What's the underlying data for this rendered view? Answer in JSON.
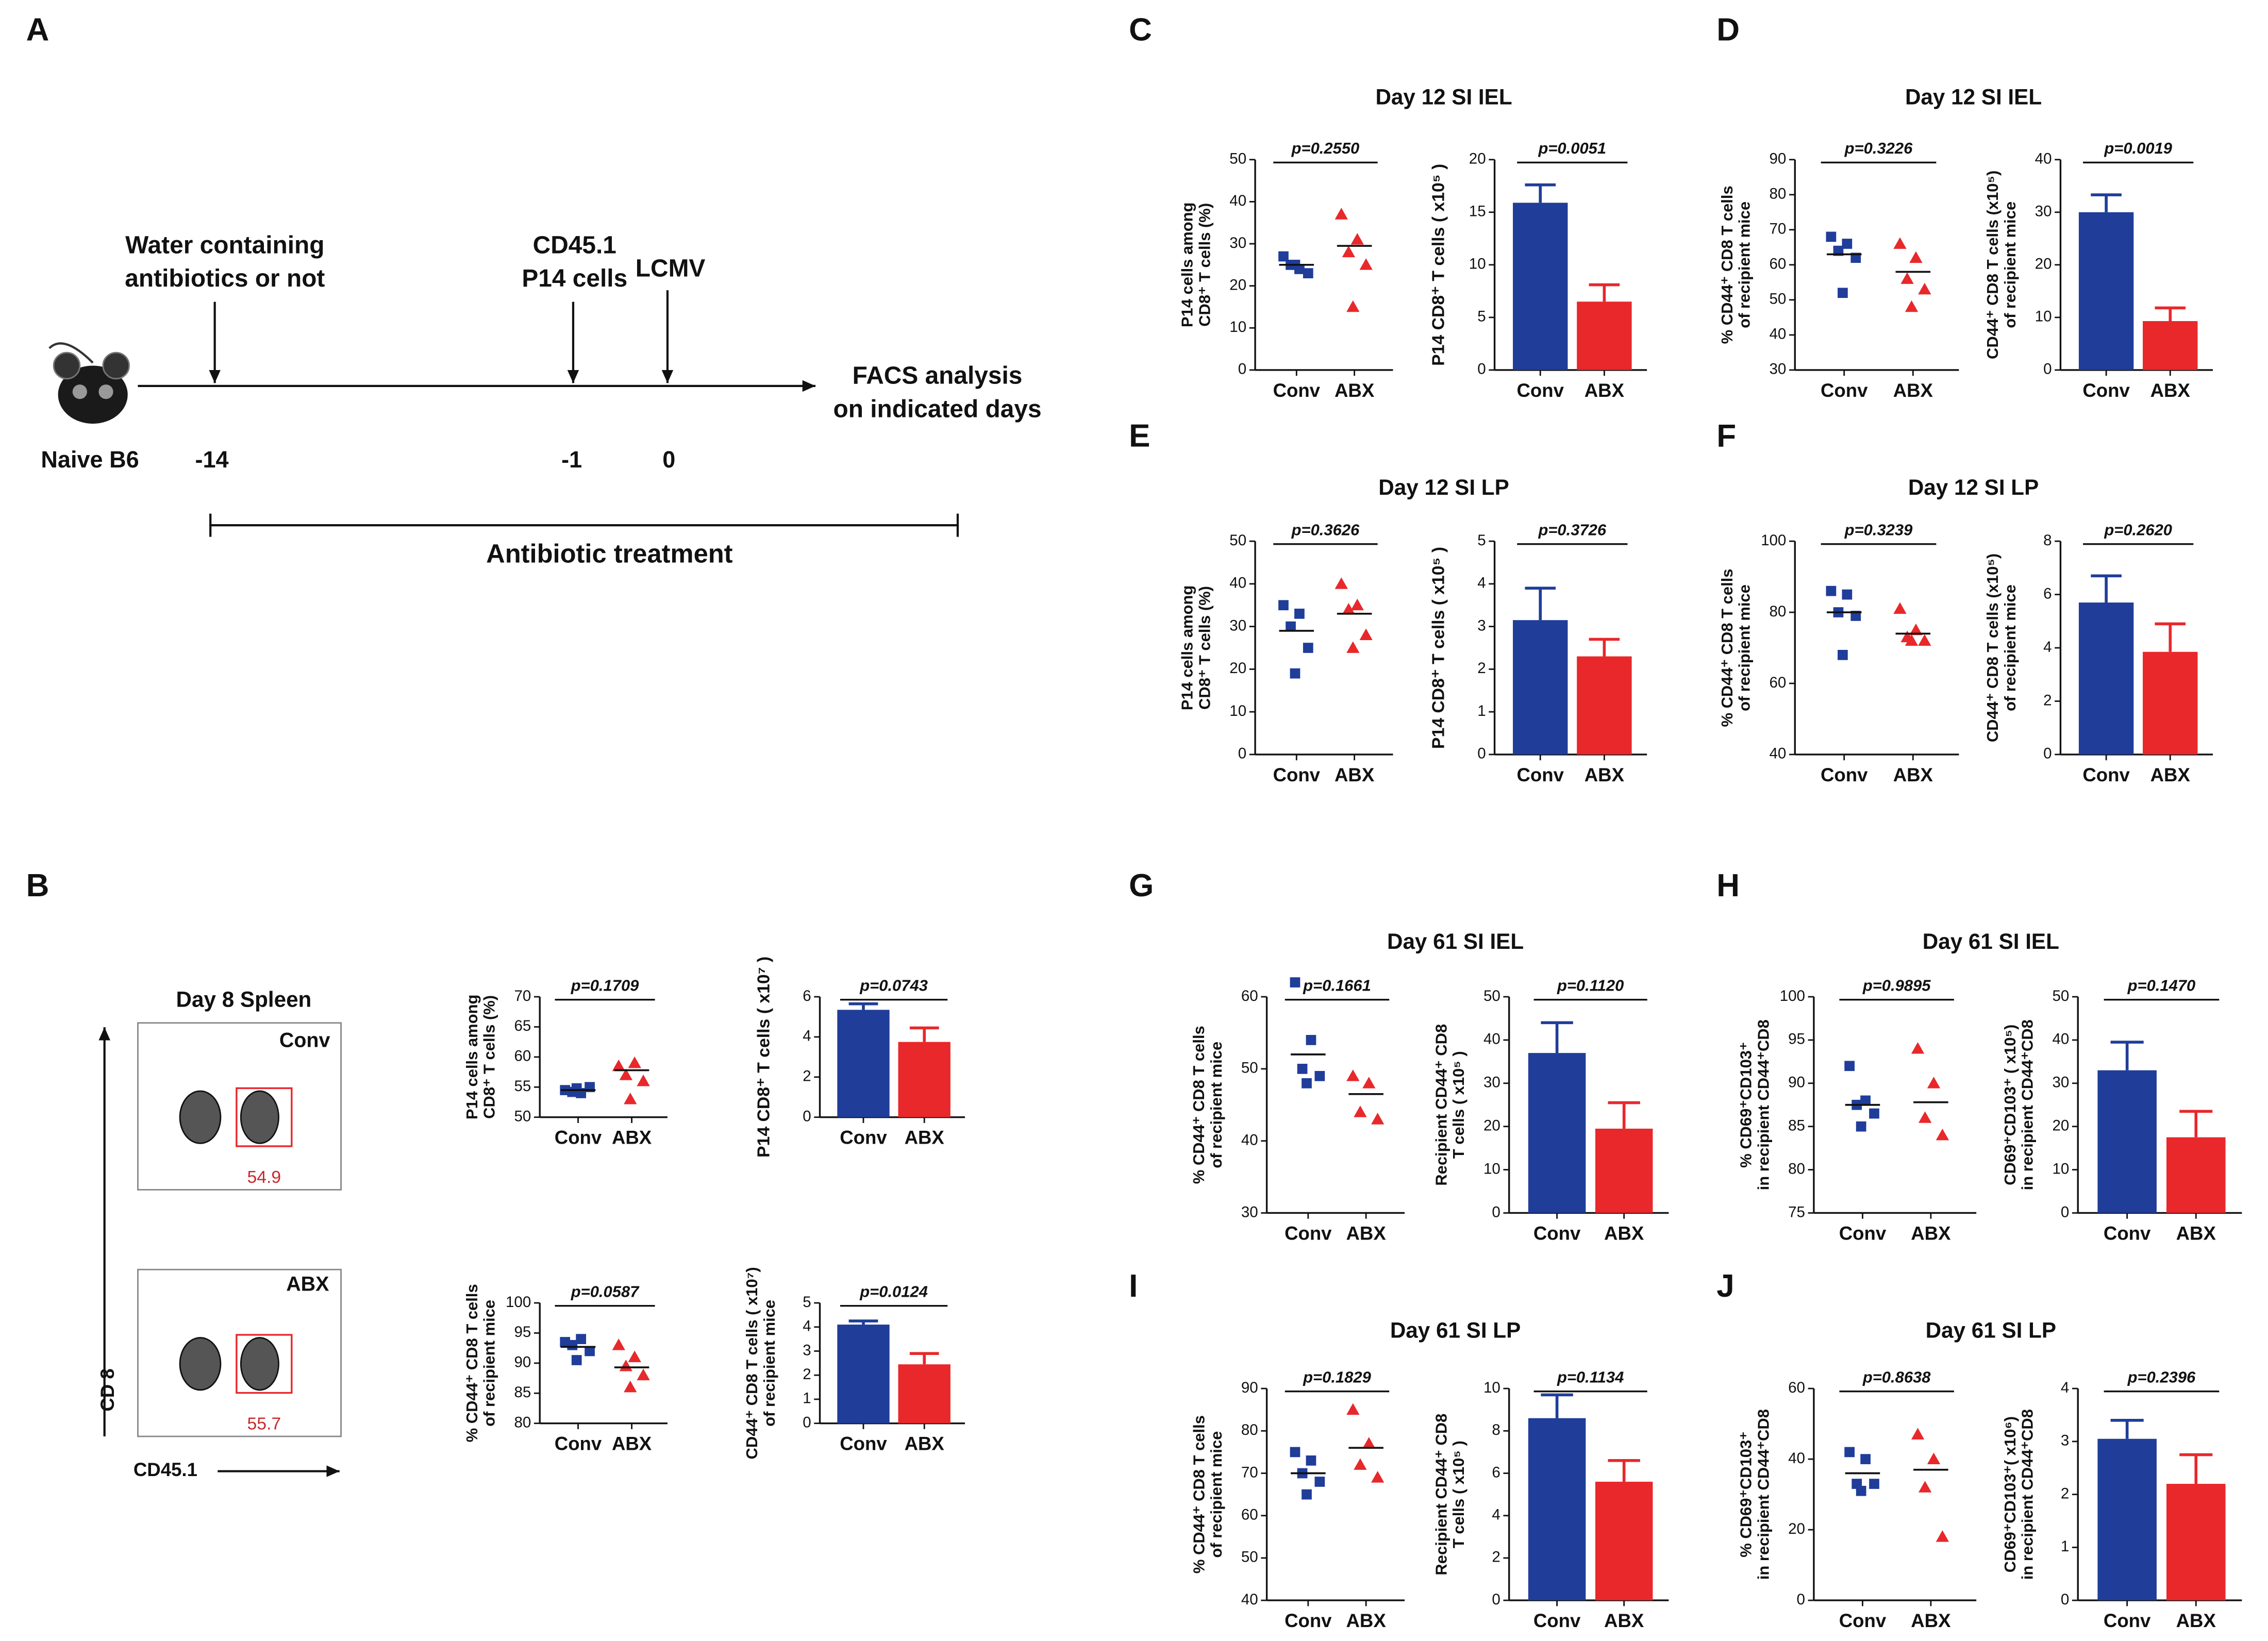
{
  "panel_labels": [
    "A",
    "B",
    "C",
    "D",
    "E",
    "F",
    "G",
    "H",
    "I",
    "J"
  ],
  "panel_titles": [
    "Day 12 SI IEL",
    "Day 12 SI IEL",
    "Day 12 SI LP",
    "Day 12 SI LP",
    "Day 61 SI IEL",
    "Day 61 SI IEL",
    "Day 61 SI LP",
    "Day 61 SI LP"
  ],
  "timeline": {
    "mouse_label": "Naive B6",
    "events": [
      {
        "label": [
          "Water containing",
          "antibiotics or not"
        ],
        "day": "-14"
      },
      {
        "label": [
          "CD45.1",
          "P14 cells"
        ],
        "day": "-1"
      },
      {
        "label": [
          "LCMV"
        ],
        "day": "0"
      }
    ],
    "end_label": [
      "FACS analysis",
      "on indicated days"
    ],
    "treatment_label": "Antibiotic treatment"
  },
  "flow": {
    "title": "Day 8 Spleen",
    "plots": [
      {
        "label": "Conv",
        "gate": "54.9"
      },
      {
        "label": "ABX",
        "gate": "55.7"
      }
    ],
    "ylabel": "CD 8",
    "xlabel": "CD45.1"
  },
  "chart_data": [
    {
      "type": "dot",
      "ylabel": [
        "P14 cells among",
        "CD8⁺ T cells (%)"
      ],
      "categories": [
        "Conv",
        "ABX"
      ],
      "colors": [
        "#1f3d99",
        "#e8282b"
      ],
      "values": [
        [
          54.5,
          54,
          54.2,
          55,
          54.8
        ],
        [
          58.5,
          59,
          57,
          56,
          53
        ]
      ],
      "means": [
        54.5,
        57.8
      ],
      "ylim": [
        50,
        70
      ],
      "yticks": [
        50,
        55,
        60,
        65,
        70
      ],
      "pvalue": "p=0.1709"
    },
    {
      "type": "bar",
      "ylabel": [
        "P14 CD8⁺ T cells ( x10⁷ )"
      ],
      "categories": [
        "Conv",
        "ABX"
      ],
      "colors": [
        "#1f3d99",
        "#e8282b"
      ],
      "values": [
        5.35,
        3.75
      ],
      "errors": [
        0.3,
        0.7
      ],
      "ylim": [
        0,
        6
      ],
      "yticks": [
        0,
        2,
        4,
        6
      ],
      "pvalue": "p=0.0743"
    },
    {
      "type": "dot",
      "ylabel": [
        "% CD44⁺ CD8 T cells",
        "of recipient mice"
      ],
      "categories": [
        "Conv",
        "ABX"
      ],
      "colors": [
        "#1f3d99",
        "#e8282b"
      ],
      "values": [
        [
          93.5,
          94,
          93,
          92,
          90.5
        ],
        [
          93,
          91,
          89.5,
          88,
          86
        ]
      ],
      "means": [
        92.7,
        89.3
      ],
      "ylim": [
        80,
        100
      ],
      "yticks": [
        80,
        85,
        90,
        95,
        100
      ],
      "pvalue": "p=0.0587"
    },
    {
      "type": "bar",
      "ylabel": [
        "CD44⁺ CD8 T cells ( x10⁷)",
        "of recipient mice"
      ],
      "categories": [
        "Conv",
        "ABX"
      ],
      "colors": [
        "#1f3d99",
        "#e8282b"
      ],
      "values": [
        4.1,
        2.45
      ],
      "errors": [
        0.15,
        0.45
      ],
      "ylim": [
        0,
        5
      ],
      "yticks": [
        0,
        1,
        2,
        3,
        4,
        5
      ],
      "pvalue": "p=0.0124"
    },
    {
      "type": "dot",
      "ylabel": [
        "P14 cells among",
        "CD8⁺ T cells (%)"
      ],
      "categories": [
        "Conv",
        "ABX"
      ],
      "colors": [
        "#1f3d99",
        "#e8282b"
      ],
      "values": [
        [
          27,
          24,
          25,
          23,
          25
        ],
        [
          37,
          31,
          28,
          25,
          15
        ]
      ],
      "means": [
        25,
        29.5
      ],
      "ylim": [
        0,
        50
      ],
      "yticks": [
        0,
        10,
        20,
        30,
        40,
        50
      ],
      "pvalue": "p=0.2550"
    },
    {
      "type": "bar",
      "ylabel": [
        "P14 CD8⁺ T cells ( x10⁵ )"
      ],
      "categories": [
        "Conv",
        "ABX"
      ],
      "colors": [
        "#1f3d99",
        "#e8282b"
      ],
      "values": [
        15.9,
        6.5
      ],
      "errors": [
        1.7,
        1.6
      ],
      "ylim": [
        0,
        20
      ],
      "yticks": [
        0,
        5,
        10,
        15,
        20
      ],
      "pvalue": "p=0.0051"
    },
    {
      "type": "dot",
      "ylabel": [
        "% CD44⁺ CD8 T cells",
        "of recipient mice"
      ],
      "categories": [
        "Conv",
        "ABX"
      ],
      "colors": [
        "#1f3d99",
        "#e8282b"
      ],
      "values": [
        [
          68,
          66,
          64,
          62,
          52
        ],
        [
          66,
          62,
          56,
          53,
          48
        ]
      ],
      "means": [
        63,
        58
      ],
      "ylim": [
        30,
        90
      ],
      "yticks": [
        30,
        40,
        50,
        60,
        70,
        80,
        90
      ],
      "pvalue": "p=0.3226"
    },
    {
      "type": "bar",
      "ylabel": [
        "CD44⁺ CD8 T cells (x10⁵)",
        "of recipient mice"
      ],
      "categories": [
        "Conv",
        "ABX"
      ],
      "colors": [
        "#1f3d99",
        "#e8282b"
      ],
      "values": [
        30,
        9.3
      ],
      "errors": [
        3.3,
        2.5
      ],
      "ylim": [
        0,
        40
      ],
      "yticks": [
        0,
        10,
        20,
        30,
        40
      ],
      "pvalue": "p=0.0019"
    },
    {
      "type": "dot",
      "ylabel": [
        "P14 cells among",
        "CD8⁺ T cells (%)"
      ],
      "categories": [
        "Conv",
        "ABX"
      ],
      "colors": [
        "#1f3d99",
        "#e8282b"
      ],
      "values": [
        [
          35,
          33,
          30,
          25,
          19
        ],
        [
          40,
          35,
          34,
          28,
          25
        ]
      ],
      "means": [
        29,
        33
      ],
      "ylim": [
        0,
        50
      ],
      "yticks": [
        0,
        10,
        20,
        30,
        40,
        50
      ],
      "pvalue": "p=0.3626"
    },
    {
      "type": "bar",
      "ylabel": [
        "P14 CD8⁺ T cells ( x10⁵ )"
      ],
      "categories": [
        "Conv",
        "ABX"
      ],
      "colors": [
        "#1f3d99",
        "#e8282b"
      ],
      "values": [
        3.15,
        2.3
      ],
      "errors": [
        0.75,
        0.4
      ],
      "ylim": [
        0,
        5
      ],
      "yticks": [
        0,
        1,
        2,
        3,
        4,
        5
      ],
      "pvalue": "p=0.3726"
    },
    {
      "type": "dot",
      "ylabel": [
        "% CD44⁺ CD8 T cells",
        "of recipient mice"
      ],
      "categories": [
        "Conv",
        "ABX"
      ],
      "colors": [
        "#1f3d99",
        "#e8282b"
      ],
      "values": [
        [
          86,
          85,
          80,
          79,
          68
        ],
        [
          81,
          75,
          73,
          72,
          72
        ]
      ],
      "means": [
        80,
        74
      ],
      "ylim": [
        40,
        100
      ],
      "yticks": [
        40,
        60,
        80,
        100
      ],
      "pvalue": "p=0.3239"
    },
    {
      "type": "bar",
      "ylabel": [
        "CD44⁺ CD8 T cells (x10⁵)",
        "of recipient mice"
      ],
      "categories": [
        "Conv",
        "ABX"
      ],
      "colors": [
        "#1f3d99",
        "#e8282b"
      ],
      "values": [
        5.7,
        3.85
      ],
      "errors": [
        1,
        1.05
      ],
      "ylim": [
        0,
        8
      ],
      "yticks": [
        0,
        2,
        4,
        6,
        8
      ],
      "pvalue": "p=0.2620"
    },
    {
      "type": "dot",
      "ylabel": [
        "% CD44⁺ CD8 T cells",
        "of recipient mice"
      ],
      "categories": [
        "Conv",
        "ABX"
      ],
      "colors": [
        "#1f3d99",
        "#e8282b"
      ],
      "values": [
        [
          62,
          54,
          50,
          49,
          48
        ],
        [
          49,
          48,
          44,
          43
        ]
      ],
      "means": [
        52,
        46.5
      ],
      "ylim": [
        30,
        60
      ],
      "yticks": [
        30,
        40,
        50,
        60
      ],
      "pvalue": "p=0.1661"
    },
    {
      "type": "bar",
      "ylabel": [
        "Recipient CD44⁺ CD8",
        "T cells ( x10⁵ )"
      ],
      "categories": [
        "Conv",
        "ABX"
      ],
      "colors": [
        "#1f3d99",
        "#e8282b"
      ],
      "values": [
        37,
        19.5
      ],
      "errors": [
        7,
        6
      ],
      "ylim": [
        0,
        50
      ],
      "yticks": [
        0,
        10,
        20,
        30,
        40,
        50
      ],
      "pvalue": "p=0.1120"
    },
    {
      "type": "dot",
      "ylabel": [
        "% CD69⁺CD103⁺",
        "in recipient CD44⁺CD8"
      ],
      "categories": [
        "Conv",
        "ABX"
      ],
      "colors": [
        "#1f3d99",
        "#e8282b"
      ],
      "values": [
        [
          92,
          88,
          87.5,
          86.5,
          85
        ],
        [
          94,
          90,
          86,
          84
        ]
      ],
      "means": [
        87.5,
        87.8
      ],
      "ylim": [
        75,
        100
      ],
      "yticks": [
        75,
        80,
        85,
        90,
        95,
        100
      ],
      "pvalue": "p=0.9895"
    },
    {
      "type": "bar",
      "ylabel": [
        "CD69⁺CD103⁺ ( x10⁵)",
        "in recipient CD44⁺CD8"
      ],
      "categories": [
        "Conv",
        "ABX"
      ],
      "colors": [
        "#1f3d99",
        "#e8282b"
      ],
      "values": [
        33,
        17.5
      ],
      "errors": [
        6.5,
        6
      ],
      "ylim": [
        0,
        50
      ],
      "yticks": [
        0,
        10,
        20,
        30,
        40,
        50
      ],
      "pvalue": "p=0.1470"
    },
    {
      "type": "dot",
      "ylabel": [
        "% CD44⁺ CD8 T cells",
        "of recipient mice"
      ],
      "categories": [
        "Conv",
        "ABX"
      ],
      "colors": [
        "#1f3d99",
        "#e8282b"
      ],
      "values": [
        [
          75,
          73,
          70,
          68,
          65
        ],
        [
          85,
          77,
          72,
          69
        ]
      ],
      "means": [
        70,
        76
      ],
      "ylim": [
        40,
        90
      ],
      "yticks": [
        40,
        50,
        60,
        70,
        80,
        90
      ],
      "pvalue": "p=0.1829"
    },
    {
      "type": "bar",
      "ylabel": [
        "Recipient CD44⁺ CD8",
        "T cells ( x10⁵ )"
      ],
      "categories": [
        "Conv",
        "ABX"
      ],
      "colors": [
        "#1f3d99",
        "#e8282b"
      ],
      "values": [
        8.6,
        5.6
      ],
      "errors": [
        1.1,
        1
      ],
      "ylim": [
        0,
        10
      ],
      "yticks": [
        0,
        2,
        4,
        6,
        8,
        10
      ],
      "pvalue": "p=0.1134"
    },
    {
      "type": "dot",
      "ylabel": [
        "% CD69⁺CD103⁺",
        "in recipient CD44⁺CD8"
      ],
      "categories": [
        "Conv",
        "ABX"
      ],
      "colors": [
        "#1f3d99",
        "#e8282b"
      ],
      "values": [
        [
          42,
          40,
          33,
          33,
          31
        ],
        [
          47,
          40,
          32,
          18
        ]
      ],
      "means": [
        36,
        37
      ],
      "ylim": [
        0,
        60
      ],
      "yticks": [
        0,
        20,
        40,
        60
      ],
      "pvalue": "p=0.8638"
    },
    {
      "type": "bar",
      "ylabel": [
        "CD69⁺CD103⁺( x10⁶)",
        "in recipient CD44⁺CD8"
      ],
      "categories": [
        "Conv",
        "ABX"
      ],
      "colors": [
        "#1f3d99",
        "#e8282b"
      ],
      "values": [
        3.05,
        2.2
      ],
      "errors": [
        0.35,
        0.55
      ],
      "ylim": [
        0,
        4
      ],
      "yticks": [
        0,
        1,
        2,
        3,
        4
      ],
      "pvalue": "p=0.2396"
    }
  ]
}
